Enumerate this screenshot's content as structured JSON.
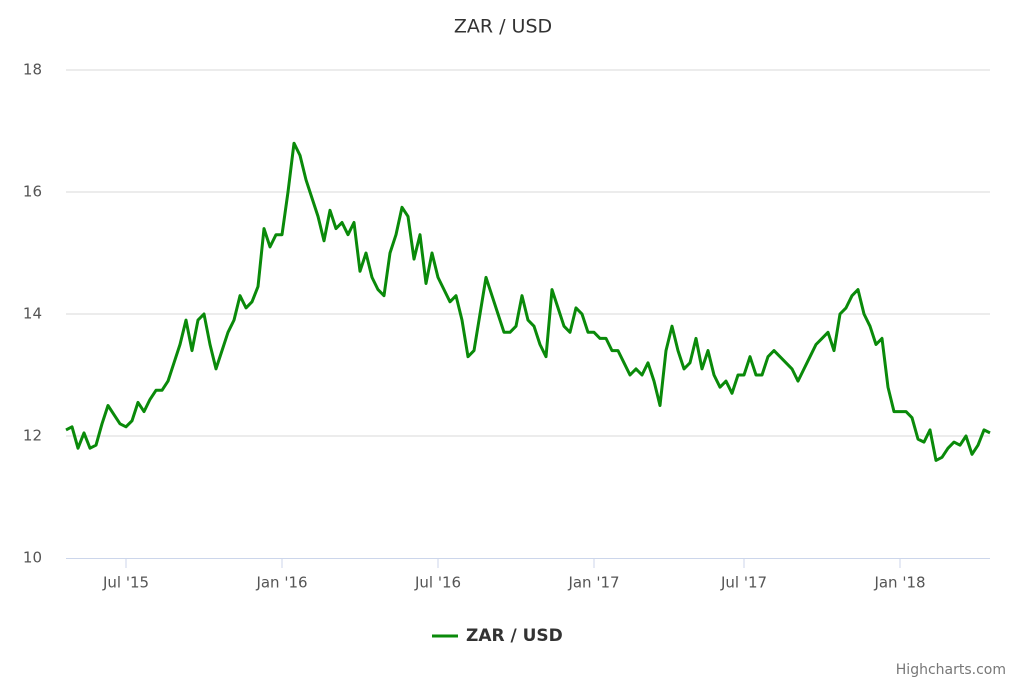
{
  "chart_data": {
    "type": "line",
    "title": "ZAR / USD",
    "categories": [
      null,
      null,
      null,
      null,
      null,
      null,
      null,
      null,
      null,
      null,
      "Jul '15",
      null,
      null,
      null,
      null,
      null,
      null,
      null,
      null,
      null,
      null,
      null,
      null,
      null,
      null,
      null,
      null,
      null,
      null,
      null,
      null,
      null,
      null,
      null,
      null,
      null,
      "Jan '16",
      null,
      null,
      null,
      null,
      null,
      null,
      null,
      null,
      null,
      null,
      null,
      null,
      null,
      null,
      null,
      null,
      null,
      null,
      null,
      null,
      null,
      null,
      null,
      null,
      null,
      "Jul '16",
      null,
      null,
      null,
      null,
      null,
      null,
      null,
      null,
      null,
      null,
      null,
      null,
      null,
      null,
      null,
      null,
      null,
      null,
      null,
      null,
      null,
      null,
      null,
      null,
      null,
      "Jan '17",
      null,
      null,
      null,
      null,
      null,
      null,
      null,
      null,
      null,
      null,
      null,
      null,
      null,
      null,
      null,
      null,
      null,
      null,
      null,
      null,
      null,
      null,
      null,
      null,
      "Jul '17",
      null,
      null,
      null,
      null,
      null,
      null,
      null,
      null,
      null,
      null,
      null,
      null,
      null,
      null,
      null,
      null,
      null,
      null,
      null,
      null,
      null,
      null,
      null,
      null,
      null,
      "Jan '18",
      null,
      null,
      null,
      null,
      null,
      null,
      null,
      null,
      null,
      null,
      null,
      null,
      null,
      null,
      null
    ],
    "series": [
      {
        "name": "ZAR / USD",
        "color": "#0a8a0a",
        "values": [
          12.1,
          12.15,
          11.8,
          12.05,
          11.8,
          11.85,
          12.2,
          12.5,
          12.35,
          12.2,
          12.15,
          12.25,
          12.55,
          12.4,
          12.6,
          12.75,
          12.75,
          12.9,
          13.2,
          13.5,
          13.9,
          13.4,
          13.9,
          14.0,
          13.5,
          13.1,
          13.4,
          13.7,
          13.9,
          14.3,
          14.1,
          14.2,
          14.45,
          15.4,
          15.1,
          15.3,
          15.3,
          16.0,
          16.8,
          16.6,
          16.2,
          15.9,
          15.6,
          15.2,
          15.7,
          15.4,
          15.5,
          15.3,
          15.5,
          14.7,
          15.0,
          14.6,
          14.4,
          14.3,
          15.0,
          15.3,
          15.75,
          15.6,
          14.9,
          15.3,
          14.5,
          15.0,
          14.6,
          14.4,
          14.2,
          14.3,
          13.9,
          13.3,
          13.4,
          14.0,
          14.6,
          14.3,
          14.0,
          13.7,
          13.7,
          13.8,
          14.3,
          13.9,
          13.8,
          13.5,
          13.3,
          14.4,
          14.1,
          13.8,
          13.7,
          14.1,
          14.0,
          13.7,
          13.7,
          13.6,
          13.6,
          13.4,
          13.4,
          13.2,
          13.0,
          13.1,
          13.0,
          13.2,
          12.9,
          12.5,
          13.4,
          13.8,
          13.4,
          13.1,
          13.2,
          13.6,
          13.1,
          13.4,
          13.0,
          12.8,
          12.9,
          12.7,
          13.0,
          13.0,
          13.3,
          13.0,
          13.0,
          13.3,
          13.4,
          13.3,
          13.2,
          13.1,
          12.9,
          13.1,
          13.3,
          13.5,
          13.6,
          13.7,
          13.4,
          14.0,
          14.1,
          14.3,
          14.4,
          14.0,
          13.8,
          13.5,
          13.6,
          12.8,
          12.4,
          12.4,
          12.4,
          12.3,
          11.95,
          11.9,
          12.1,
          11.6,
          11.65,
          11.8,
          11.9,
          11.85,
          12.0,
          11.7,
          11.85,
          12.1,
          12.05
        ]
      }
    ],
    "ylim": [
      10,
      18
    ],
    "yticks": [
      10,
      12,
      14,
      16,
      18
    ],
    "grid": true,
    "legend": "bottom",
    "credits": "Highcharts.com"
  }
}
